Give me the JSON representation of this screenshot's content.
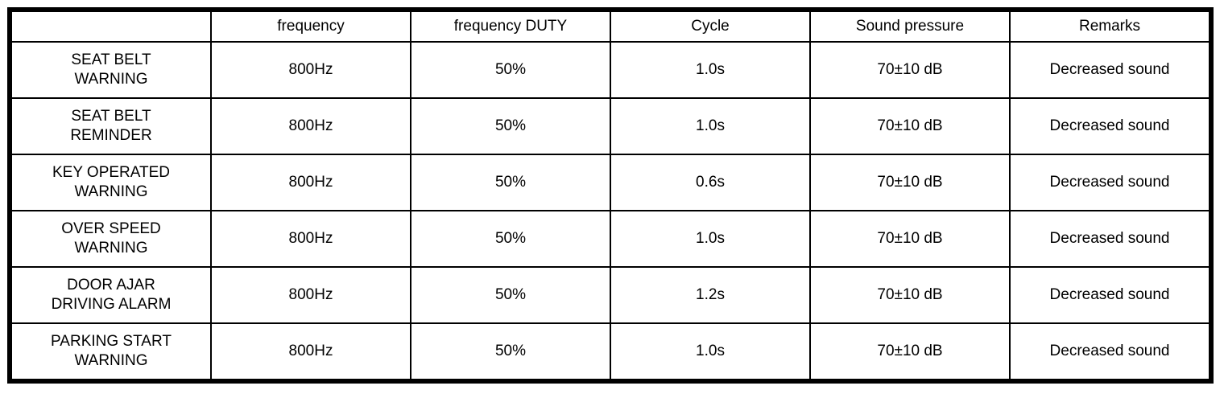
{
  "colors": {
    "background": "#ffffff",
    "border": "#000000",
    "text": "#000000"
  },
  "table": {
    "columns": [
      {
        "label": ""
      },
      {
        "label": "frequency"
      },
      {
        "label": "frequency DUTY"
      },
      {
        "label": "Cycle"
      },
      {
        "label": "Sound pressure"
      },
      {
        "label": "Remarks"
      }
    ],
    "rows": [
      {
        "name": "SEAT BELT\nWARNING",
        "frequency": "800Hz",
        "duty": "50%",
        "cycle": "1.0s",
        "sound_pressure": "70±10 dB",
        "remarks": "Decreased sound"
      },
      {
        "name": "SEAT BELT\nREMINDER",
        "frequency": "800Hz",
        "duty": "50%",
        "cycle": "1.0s",
        "sound_pressure": "70±10 dB",
        "remarks": "Decreased sound"
      },
      {
        "name": "KEY OPERATED\nWARNING",
        "frequency": "800Hz",
        "duty": "50%",
        "cycle": "0.6s",
        "sound_pressure": "70±10 dB",
        "remarks": "Decreased sound"
      },
      {
        "name": "OVER SPEED\nWARNING",
        "frequency": "800Hz",
        "duty": "50%",
        "cycle": "1.0s",
        "sound_pressure": "70±10 dB",
        "remarks": "Decreased sound"
      },
      {
        "name": "DOOR AJAR\nDRIVING ALARM",
        "frequency": "800Hz",
        "duty": "50%",
        "cycle": "1.2s",
        "sound_pressure": "70±10 dB",
        "remarks": "Decreased sound"
      },
      {
        "name": "PARKING START\nWARNING",
        "frequency": "800Hz",
        "duty": "50%",
        "cycle": "1.0s",
        "sound_pressure": "70±10 dB",
        "remarks": "Decreased sound"
      }
    ]
  }
}
